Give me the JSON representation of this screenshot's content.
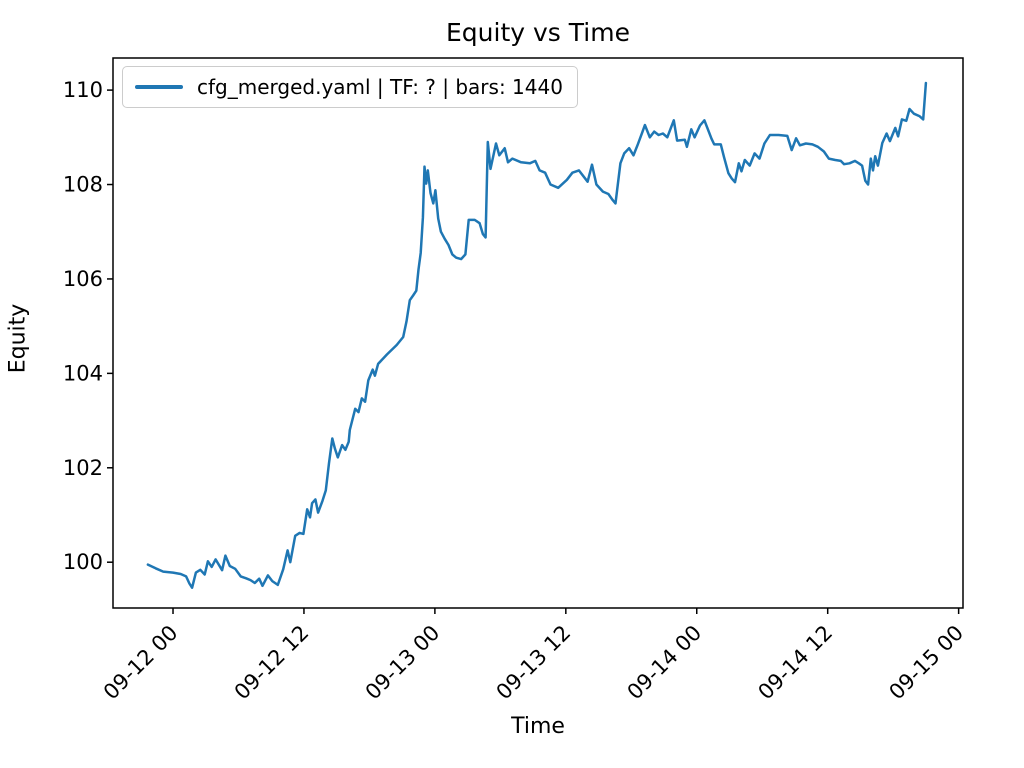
{
  "figure": {
    "background": "#ffffff"
  },
  "colors": {
    "line": "#1f77b4",
    "text": "#000000",
    "spine": "#000000",
    "legend_border": "#cccccc"
  },
  "legend": {
    "label": "cfg_merged.yaml | TF: ? | bars: 1440",
    "swatch_color": "#1f77b4",
    "position": "upper left"
  },
  "chart_data": {
    "type": "line",
    "title": "Equity vs Time",
    "xlabel": "Time",
    "ylabel": "Equity",
    "grid": false,
    "legend_entries": [
      "cfg_merged.yaml | TF: ? | bars: 1440"
    ],
    "x_unit": "hours relative to 09-12 00:00",
    "xlim": [
      -5.5,
      72.4
    ],
    "ylim": [
      99.03,
      110.68
    ],
    "x_ticks": [
      {
        "value": 0,
        "label": "09-12 00"
      },
      {
        "value": 12,
        "label": "09-12 12"
      },
      {
        "value": 24,
        "label": "09-13 00"
      },
      {
        "value": 36,
        "label": "09-13 12"
      },
      {
        "value": 48,
        "label": "09-14 00"
      },
      {
        "value": 60,
        "label": "09-14 12"
      },
      {
        "value": 72,
        "label": "09-15 00"
      }
    ],
    "y_ticks": [
      {
        "value": 100,
        "label": "100"
      },
      {
        "value": 102,
        "label": "102"
      },
      {
        "value": 104,
        "label": "104"
      },
      {
        "value": 106,
        "label": "106"
      },
      {
        "value": 108,
        "label": "108"
      },
      {
        "value": 110,
        "label": "110"
      }
    ],
    "series": [
      {
        "name": "cfg_merged.yaml | TF: ? | bars: 1440",
        "color": "#1f77b4",
        "points": [
          [
            -2.3,
            99.95
          ],
          [
            -1.6,
            99.87
          ],
          [
            -0.9,
            99.8
          ],
          [
            0,
            99.78
          ],
          [
            0.7,
            99.75
          ],
          [
            1.2,
            99.7
          ],
          [
            1.5,
            99.55
          ],
          [
            1.75,
            99.46
          ],
          [
            2.1,
            99.78
          ],
          [
            2.5,
            99.84
          ],
          [
            2.9,
            99.74
          ],
          [
            3.2,
            100.02
          ],
          [
            3.55,
            99.9
          ],
          [
            3.9,
            100.06
          ],
          [
            4.5,
            99.83
          ],
          [
            4.8,
            100.14
          ],
          [
            5.2,
            99.92
          ],
          [
            5.7,
            99.86
          ],
          [
            6.2,
            99.7
          ],
          [
            6.7,
            99.66
          ],
          [
            7.1,
            99.62
          ],
          [
            7.5,
            99.56
          ],
          [
            7.9,
            99.65
          ],
          [
            8.2,
            99.5
          ],
          [
            8.7,
            99.72
          ],
          [
            9.1,
            99.6
          ],
          [
            9.6,
            99.52
          ],
          [
            10.1,
            99.85
          ],
          [
            10.5,
            100.25
          ],
          [
            10.75,
            100.0
          ],
          [
            11.2,
            100.56
          ],
          [
            11.6,
            100.62
          ],
          [
            11.95,
            100.6
          ],
          [
            12.3,
            101.12
          ],
          [
            12.55,
            100.95
          ],
          [
            12.75,
            101.25
          ],
          [
            13.05,
            101.33
          ],
          [
            13.3,
            101.05
          ],
          [
            13.7,
            101.3
          ],
          [
            14.0,
            101.52
          ],
          [
            14.3,
            102.1
          ],
          [
            14.6,
            102.62
          ],
          [
            14.85,
            102.4
          ],
          [
            15.1,
            102.22
          ],
          [
            15.5,
            102.48
          ],
          [
            15.8,
            102.38
          ],
          [
            16.1,
            102.55
          ],
          [
            16.2,
            102.8
          ],
          [
            16.7,
            103.25
          ],
          [
            17.0,
            103.18
          ],
          [
            17.3,
            103.47
          ],
          [
            17.6,
            103.4
          ],
          [
            17.9,
            103.85
          ],
          [
            18.3,
            104.08
          ],
          [
            18.5,
            103.95
          ],
          [
            18.8,
            104.2
          ],
          [
            19.6,
            104.4
          ],
          [
            20.5,
            104.6
          ],
          [
            21.1,
            104.77
          ],
          [
            21.4,
            105.1
          ],
          [
            21.7,
            105.55
          ],
          [
            22.0,
            105.65
          ],
          [
            22.3,
            105.75
          ],
          [
            22.5,
            106.2
          ],
          [
            22.7,
            106.55
          ],
          [
            22.9,
            107.3
          ],
          [
            23.05,
            108.38
          ],
          [
            23.2,
            108.02
          ],
          [
            23.35,
            108.3
          ],
          [
            23.6,
            107.82
          ],
          [
            23.85,
            107.6
          ],
          [
            24.05,
            107.88
          ],
          [
            24.3,
            107.28
          ],
          [
            24.55,
            107.0
          ],
          [
            24.9,
            106.85
          ],
          [
            25.25,
            106.72
          ],
          [
            25.6,
            106.52
          ],
          [
            25.95,
            106.45
          ],
          [
            26.4,
            106.42
          ],
          [
            26.8,
            106.52
          ],
          [
            27.1,
            107.25
          ],
          [
            27.65,
            107.25
          ],
          [
            28.1,
            107.18
          ],
          [
            28.4,
            106.95
          ],
          [
            28.65,
            106.88
          ],
          [
            28.85,
            108.9
          ],
          [
            29.1,
            108.33
          ],
          [
            29.6,
            108.87
          ],
          [
            29.9,
            108.62
          ],
          [
            30.4,
            108.77
          ],
          [
            30.7,
            108.47
          ],
          [
            31.1,
            108.55
          ],
          [
            31.9,
            108.47
          ],
          [
            32.7,
            108.45
          ],
          [
            33.2,
            108.5
          ],
          [
            33.6,
            108.3
          ],
          [
            34.1,
            108.25
          ],
          [
            34.6,
            108.0
          ],
          [
            35.3,
            107.93
          ],
          [
            36.1,
            108.1
          ],
          [
            36.6,
            108.25
          ],
          [
            37.2,
            108.3
          ],
          [
            38.0,
            108.06
          ],
          [
            38.4,
            108.42
          ],
          [
            38.8,
            108.0
          ],
          [
            39.4,
            107.85
          ],
          [
            39.9,
            107.8
          ],
          [
            40.3,
            107.67
          ],
          [
            40.55,
            107.6
          ],
          [
            41.0,
            108.45
          ],
          [
            41.35,
            108.66
          ],
          [
            41.8,
            108.77
          ],
          [
            42.2,
            108.62
          ],
          [
            42.6,
            108.85
          ],
          [
            43.0,
            109.1
          ],
          [
            43.25,
            109.26
          ],
          [
            43.7,
            109.0
          ],
          [
            44.1,
            109.12
          ],
          [
            44.5,
            109.05
          ],
          [
            44.9,
            109.08
          ],
          [
            45.3,
            109.0
          ],
          [
            45.9,
            109.36
          ],
          [
            46.2,
            108.93
          ],
          [
            46.9,
            108.95
          ],
          [
            47.1,
            108.8
          ],
          [
            47.5,
            109.17
          ],
          [
            47.8,
            109.0
          ],
          [
            48.3,
            109.25
          ],
          [
            48.7,
            109.36
          ],
          [
            49.35,
            108.97
          ],
          [
            49.6,
            108.85
          ],
          [
            50.2,
            108.85
          ],
          [
            50.5,
            108.58
          ],
          [
            50.9,
            108.24
          ],
          [
            51.2,
            108.13
          ],
          [
            51.5,
            108.05
          ],
          [
            51.85,
            108.45
          ],
          [
            52.1,
            108.28
          ],
          [
            52.4,
            108.52
          ],
          [
            52.85,
            108.4
          ],
          [
            53.3,
            108.66
          ],
          [
            53.75,
            108.55
          ],
          [
            54.2,
            108.87
          ],
          [
            54.7,
            109.05
          ],
          [
            55.5,
            109.05
          ],
          [
            56.3,
            109.03
          ],
          [
            56.7,
            108.73
          ],
          [
            57.1,
            108.98
          ],
          [
            57.45,
            108.83
          ],
          [
            58.0,
            108.87
          ],
          [
            58.6,
            108.85
          ],
          [
            59.1,
            108.8
          ],
          [
            59.65,
            108.7
          ],
          [
            60.1,
            108.55
          ],
          [
            60.7,
            108.52
          ],
          [
            61.2,
            108.5
          ],
          [
            61.5,
            108.43
          ],
          [
            62.0,
            108.45
          ],
          [
            62.5,
            108.5
          ],
          [
            62.85,
            108.45
          ],
          [
            63.15,
            108.4
          ],
          [
            63.45,
            108.08
          ],
          [
            63.7,
            108.0
          ],
          [
            63.95,
            108.55
          ],
          [
            64.15,
            108.3
          ],
          [
            64.35,
            108.6
          ],
          [
            64.6,
            108.4
          ],
          [
            65.0,
            108.88
          ],
          [
            65.4,
            109.08
          ],
          [
            65.7,
            108.92
          ],
          [
            66.2,
            109.2
          ],
          [
            66.45,
            109.02
          ],
          [
            66.8,
            109.38
          ],
          [
            67.2,
            109.35
          ],
          [
            67.5,
            109.6
          ],
          [
            67.9,
            109.5
          ],
          [
            68.4,
            109.45
          ],
          [
            68.75,
            109.38
          ],
          [
            69.0,
            110.15
          ]
        ]
      }
    ]
  }
}
